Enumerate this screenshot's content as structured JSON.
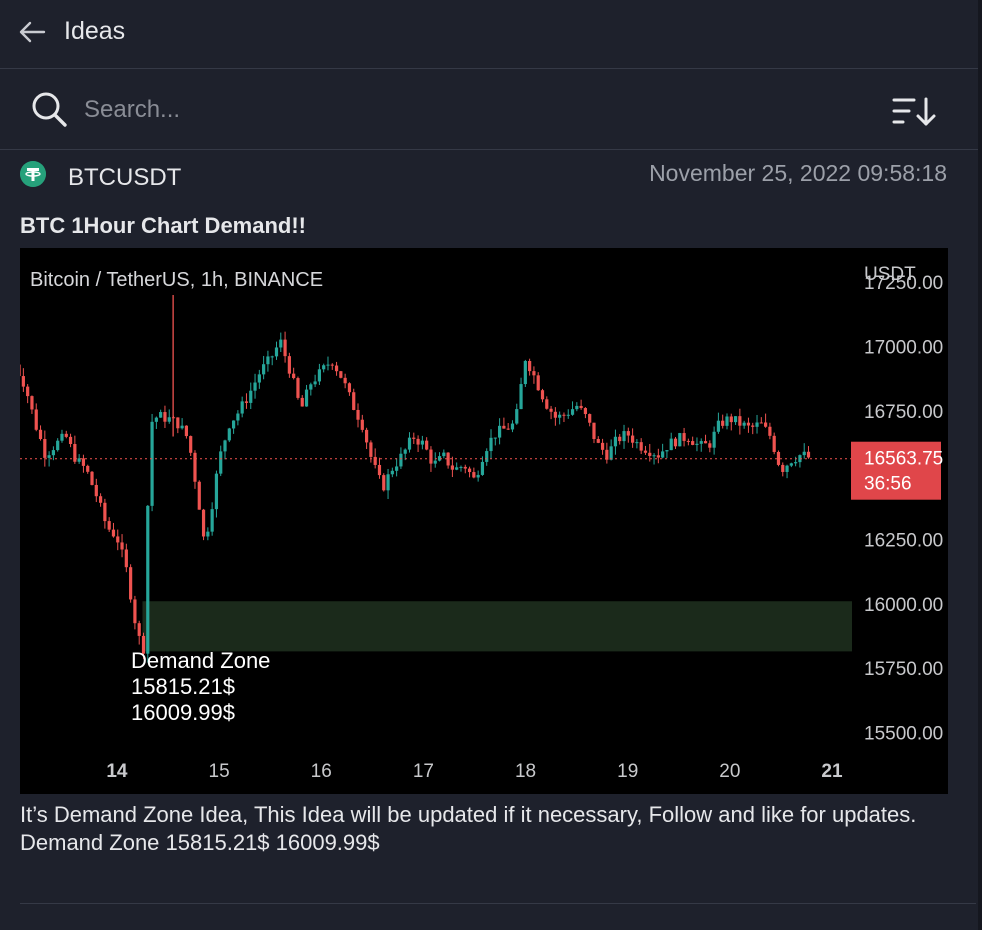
{
  "header": {
    "title": "Ideas"
  },
  "search": {
    "placeholder": "Search..."
  },
  "post": {
    "symbol": "BTCUSDT",
    "timestamp": "November 25, 2022 09:58:18",
    "title": "BTC 1Hour Chart Demand!!",
    "description": "It’s Demand Zone Idea, This Idea will be updated if it necessary, Follow and like for updates. Demand Zone 15815.21$ 16009.99$"
  },
  "colors": {
    "up": "#26a69a",
    "down": "#ef5350",
    "zone": "#1b2a1b",
    "price_label": "#e0464a",
    "background": "#1e212c"
  },
  "icons": {
    "back": "arrow-left-icon",
    "search": "search-icon",
    "sort": "sort-icon",
    "symbol": "tether-icon"
  },
  "chart_data": {
    "type": "candlestick",
    "title": "Bitcoin / TetherUS, 1h, BINANCE",
    "y_unit": "USDT",
    "ylim": [
      15300,
      17400
    ],
    "y_ticks": [
      "17250.00",
      "17000.00",
      "16750.00",
      "16250.00",
      "16000.00",
      "15750.00",
      "15500.00"
    ],
    "x_ticks": [
      "14",
      "15",
      "16",
      "17",
      "18",
      "19",
      "20",
      "21"
    ],
    "x_range": [
      13.1,
      21.0
    ],
    "last_price": "16563.75",
    "countdown": "36:56",
    "demand_zone": {
      "low": 15815.21,
      "high": 16009.99,
      "x_start": 14.25,
      "x_end": 21.2
    },
    "annotation": [
      "Demand Zone",
      "15815.21$",
      "16009.99$"
    ],
    "path": [
      [
        13.0,
        16930
      ],
      [
        13.1,
        16850
      ],
      [
        13.2,
        16700
      ],
      [
        13.3,
        16580
      ],
      [
        13.4,
        16620
      ],
      [
        13.5,
        16650
      ],
      [
        13.6,
        16560
      ],
      [
        13.7,
        16520
      ],
      [
        13.8,
        16420
      ],
      [
        13.9,
        16300
      ],
      [
        14.0,
        16260
      ],
      [
        14.1,
        16120
      ],
      [
        14.2,
        15880
      ],
      [
        14.27,
        15820
      ],
      [
        14.32,
        16700
      ],
      [
        14.4,
        16730
      ],
      [
        14.5,
        16720
      ],
      [
        14.6,
        16700
      ],
      [
        14.7,
        16640
      ],
      [
        14.8,
        16400
      ],
      [
        14.85,
        16250
      ],
      [
        14.9,
        16310
      ],
      [
        15.0,
        16560
      ],
      [
        15.1,
        16700
      ],
      [
        15.2,
        16750
      ],
      [
        15.3,
        16820
      ],
      [
        15.4,
        16900
      ],
      [
        15.5,
        16950
      ],
      [
        15.6,
        17020
      ],
      [
        15.7,
        16900
      ],
      [
        15.8,
        16750
      ],
      [
        15.9,
        16860
      ],
      [
        16.0,
        16900
      ],
      [
        16.1,
        16950
      ],
      [
        16.2,
        16880
      ],
      [
        16.3,
        16780
      ],
      [
        16.4,
        16700
      ],
      [
        16.5,
        16550
      ],
      [
        16.6,
        16450
      ],
      [
        16.7,
        16530
      ],
      [
        16.8,
        16580
      ],
      [
        16.9,
        16650
      ],
      [
        17.0,
        16620
      ],
      [
        17.1,
        16540
      ],
      [
        17.2,
        16570
      ],
      [
        17.3,
        16520
      ],
      [
        17.4,
        16540
      ],
      [
        17.5,
        16480
      ],
      [
        17.6,
        16600
      ],
      [
        17.7,
        16660
      ],
      [
        17.8,
        16680
      ],
      [
        17.9,
        16700
      ],
      [
        18.0,
        16960
      ],
      [
        18.1,
        16870
      ],
      [
        18.2,
        16780
      ],
      [
        18.3,
        16720
      ],
      [
        18.4,
        16740
      ],
      [
        18.5,
        16770
      ],
      [
        18.6,
        16720
      ],
      [
        18.7,
        16620
      ],
      [
        18.8,
        16580
      ],
      [
        18.9,
        16640
      ],
      [
        19.0,
        16660
      ],
      [
        19.1,
        16620
      ],
      [
        19.2,
        16600
      ],
      [
        19.3,
        16580
      ],
      [
        19.4,
        16620
      ],
      [
        19.5,
        16640
      ],
      [
        19.6,
        16650
      ],
      [
        19.7,
        16610
      ],
      [
        19.8,
        16620
      ],
      [
        19.9,
        16700
      ],
      [
        20.0,
        16720
      ],
      [
        20.1,
        16700
      ],
      [
        20.2,
        16680
      ],
      [
        20.3,
        16700
      ],
      [
        20.4,
        16650
      ],
      [
        20.5,
        16520
      ],
      [
        20.6,
        16560
      ],
      [
        20.7,
        16580
      ],
      [
        20.8,
        16563.75
      ]
    ]
  }
}
